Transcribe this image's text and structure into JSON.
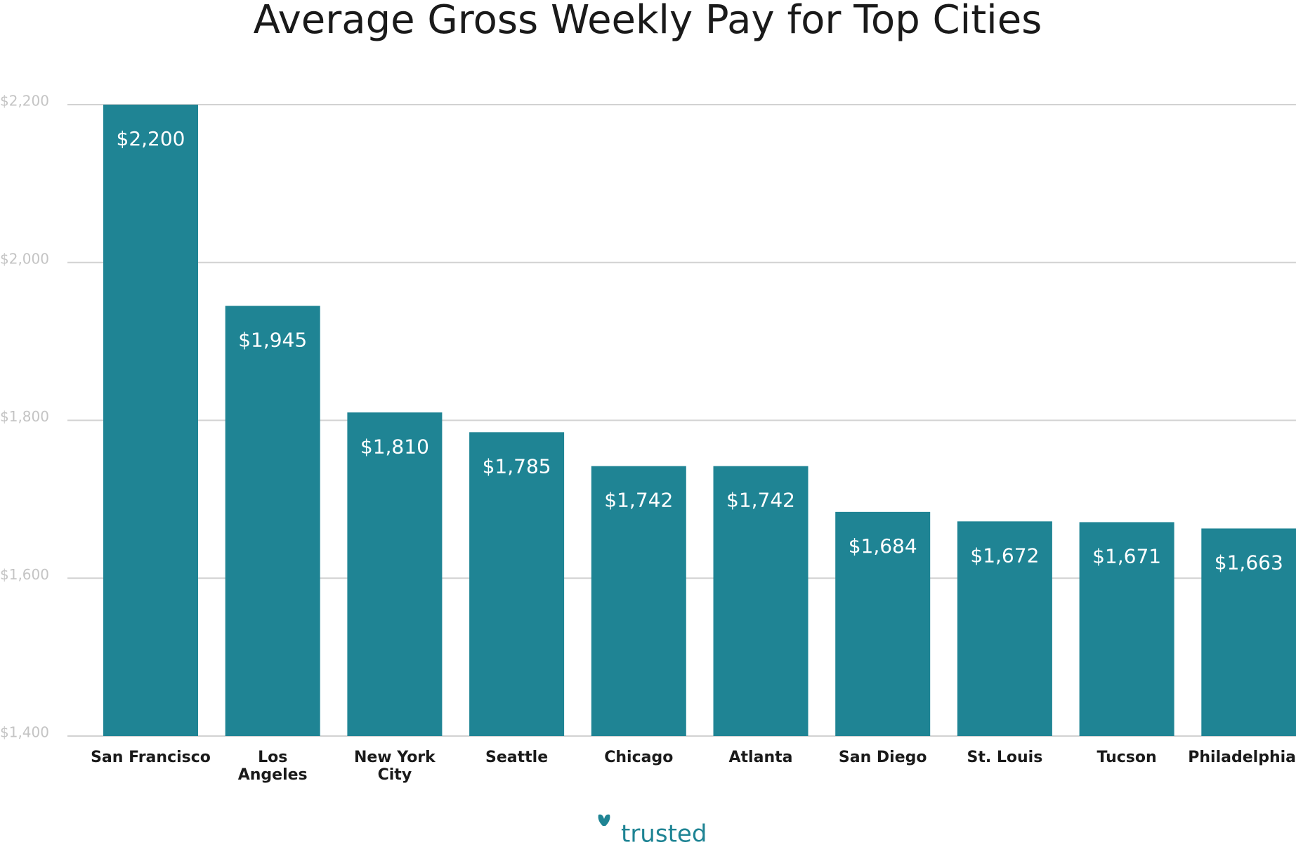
{
  "chart_data": {
    "type": "bar",
    "title": "Average Gross Weekly Pay for Top Cities",
    "categories": [
      "San Francisco",
      "Los\nAngeles",
      "New York\nCity",
      "Seattle",
      "Chicago",
      "Atlanta",
      "San Diego",
      "St. Louis",
      "Tucson",
      "Philadelphia"
    ],
    "values": [
      2200,
      1945,
      1810,
      1785,
      1742,
      1742,
      1684,
      1672,
      1671,
      1663
    ],
    "value_labels": [
      "$2,200",
      "$1,945",
      "$1,810",
      "$1,785",
      "$1,742",
      "$1,742",
      "$1,684",
      "$1,672",
      "$1,671",
      "$1,663"
    ],
    "color": "#1f8494",
    "ylim": [
      1400,
      2200
    ],
    "yticks": [
      {
        "value": 1400,
        "label": "$1,400"
      },
      {
        "value": 1600,
        "label": "$1,600"
      },
      {
        "value": 1800,
        "label": "$1,800"
      },
      {
        "value": 2000,
        "label": "$2,000"
      },
      {
        "value": 2200,
        "label": "$2,200"
      }
    ],
    "grid": true
  },
  "logo": "trusted"
}
